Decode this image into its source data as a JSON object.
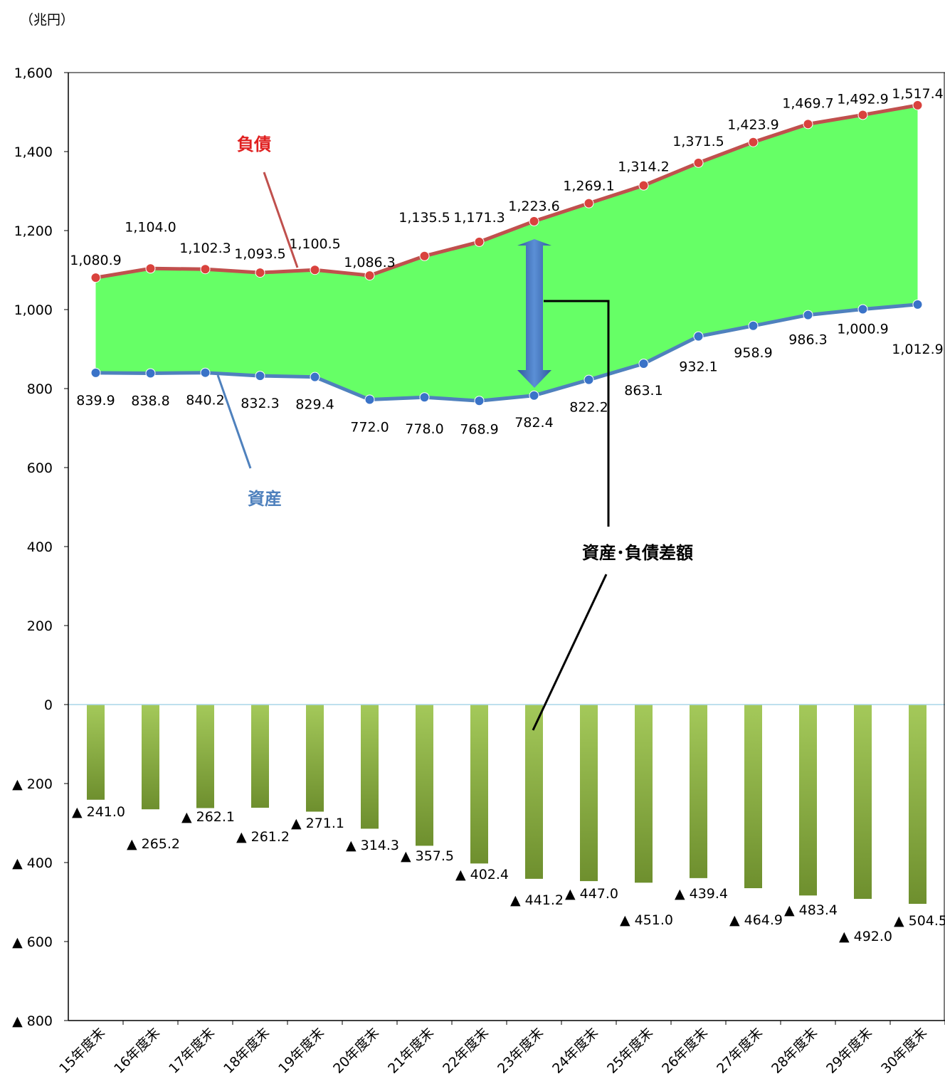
{
  "chart_data": {
    "type": "line+area+bar",
    "unit_label": "（兆円）",
    "categories": [
      "15年度末",
      "16年度末",
      "17年度末",
      "18年度末",
      "19年度末",
      "20年度末",
      "21年度末",
      "22年度末",
      "23年度末",
      "24年度末",
      "25年度末",
      "26年度末",
      "27年度末",
      "28年度末",
      "29年度末",
      "30年度末"
    ],
    "ylim": [
      -800,
      1600
    ],
    "y_ticks": [
      1600,
      1400,
      1200,
      1000,
      800,
      600,
      400,
      200,
      0,
      -200,
      -400,
      -600,
      -800
    ],
    "y_tick_labels": [
      "1,600",
      "1,400",
      "1,200",
      "1,000",
      "800",
      "600",
      "400",
      "200",
      "0",
      "▲ 200",
      "▲ 400",
      "▲ 600",
      "▲ 800"
    ],
    "series": [
      {
        "name": "負債",
        "type": "line",
        "color": "#C0504D",
        "values": [
          1080.9,
          1104.0,
          1102.3,
          1093.5,
          1100.5,
          1086.3,
          1135.5,
          1171.3,
          1223.6,
          1269.1,
          1314.2,
          1371.5,
          1423.9,
          1469.7,
          1492.9,
          1517.4
        ],
        "labels": [
          "1,080.9",
          "1,104.0",
          "1,102.3",
          "1,093.5",
          "1,100.5",
          "1,086.3",
          "1,135.5",
          "1,171.3",
          "1,223.6",
          "1,269.1",
          "1,314.2",
          "1,371.5",
          "1,423.9",
          "1,469.7",
          "1,492.9",
          "1,517.4"
        ]
      },
      {
        "name": "資産",
        "type": "line",
        "color": "#4F81BD",
        "values": [
          839.9,
          838.8,
          840.2,
          832.3,
          829.4,
          772.0,
          778.0,
          768.9,
          782.4,
          822.2,
          863.1,
          932.1,
          958.9,
          986.3,
          1000.9,
          1012.9
        ],
        "labels": [
          "839.9",
          "838.8",
          "840.2",
          "832.3",
          "829.4",
          "772.0",
          "778.0",
          "768.9",
          "782.4",
          "822.2",
          "863.1",
          "932.1",
          "958.9",
          "986.3",
          "1,000.9",
          "1,012.9"
        ]
      },
      {
        "name": "資産・負債差額",
        "type": "bar",
        "color": "#9BBB59",
        "values": [
          -241.0,
          -265.2,
          -262.1,
          -261.2,
          -271.1,
          -314.3,
          -357.5,
          -402.4,
          -441.2,
          -447.0,
          -451.0,
          -439.4,
          -464.9,
          -483.4,
          -492.0,
          -504.5
        ],
        "labels": [
          "▲ 241.0",
          "▲ 265.2",
          "▲ 262.1",
          "▲ 261.2",
          "▲ 271.1",
          "▲ 314.3",
          "▲ 357.5",
          "▲ 402.4",
          "▲ 441.2",
          "▲ 447.0",
          "▲ 451.0",
          "▲ 439.4",
          "▲ 464.9",
          "▲ 483.4",
          "▲ 492.0",
          "▲ 504.5"
        ]
      }
    ],
    "fill_between_color": "#66FF66",
    "annotations": {
      "liabilities": "負債",
      "assets": "資産",
      "difference": "資産･負債差額"
    },
    "grid": false,
    "legend": "none"
  }
}
